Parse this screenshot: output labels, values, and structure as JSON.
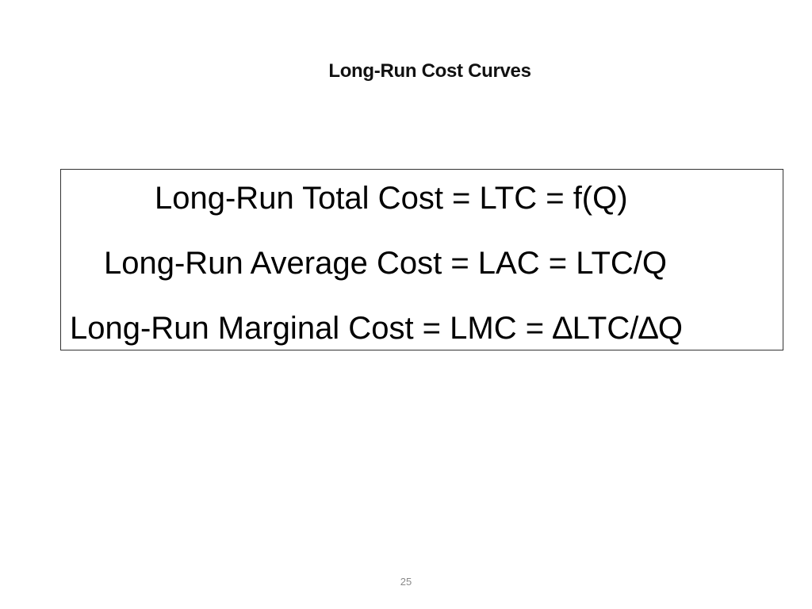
{
  "slide": {
    "title": "Long-Run Cost Curves",
    "formulas": [
      "Long-Run Total Cost = LTC = f(Q)",
      "Long-Run Average Cost = LAC = LTC/Q",
      "Long-Run Marginal Cost = LMC = ∆LTC/∆Q"
    ],
    "page_number": "25"
  }
}
